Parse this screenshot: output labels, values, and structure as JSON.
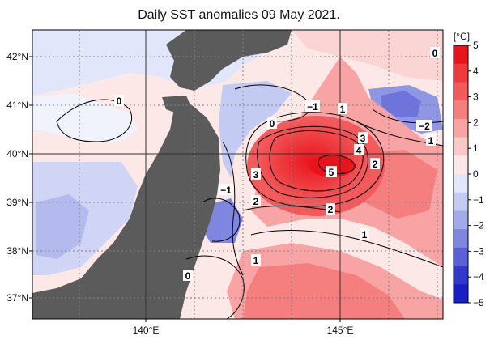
{
  "title": "Daily SST anomalies 09 May 2021.",
  "lat_labels": [
    "42°N",
    "41°N",
    "40°N",
    "39°N",
    "38°N",
    "37°N"
  ],
  "lon_labels": [
    "140°E",
    "145°E"
  ],
  "colorbar": {
    "unit": "[°C]",
    "ticks": [
      "5",
      "4",
      "3",
      "2",
      "1",
      "0",
      "−1",
      "−2",
      "−3",
      "−4",
      "−5"
    ],
    "colors": [
      "#e8141c",
      "#ee3a3e",
      "#f25a5c",
      "#f57e7e",
      "#f8a4a4",
      "#fbc8c8",
      "#fde6e6",
      "#e2e6fa",
      "#c4cbf3",
      "#a3aaea",
      "#7f86e0",
      "#5a60d6",
      "#3338cc",
      "#1a1fc4"
    ]
  },
  "contour_labels": [
    "0",
    "0",
    "0",
    "0",
    "−1",
    "1",
    "3",
    "4",
    "−2",
    "1",
    "5",
    "2",
    "3",
    "−1",
    "2",
    "2",
    "1",
    "1"
  ],
  "colors": {
    "land": "#5b5b5b",
    "grid": "#808080",
    "coast": "#ffffff"
  }
}
